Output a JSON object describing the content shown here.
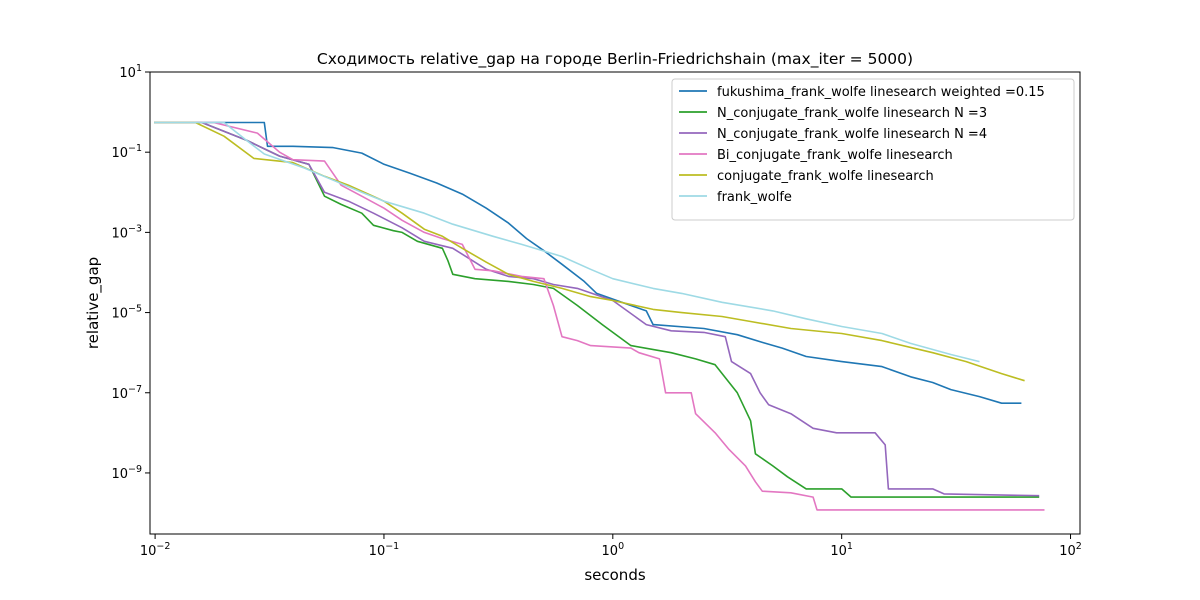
{
  "chart_data": {
    "type": "line",
    "title": "Сходимость relative_gap на городе Berlin-Friedrichshain  (max_iter = 5000)",
    "xlabel": "seconds",
    "ylabel": "relative_gap",
    "xscale": "log",
    "yscale": "log",
    "xlim": [
      0.0095,
      110
    ],
    "ylim": [
      3e-11,
      10
    ],
    "x_ticks": [
      {
        "value": 0.01,
        "base": "10",
        "exp": "−2"
      },
      {
        "value": 0.1,
        "base": "10",
        "exp": "−1"
      },
      {
        "value": 1,
        "base": "10",
        "exp": "0"
      },
      {
        "value": 10,
        "base": "10",
        "exp": "1"
      },
      {
        "value": 100,
        "base": "10",
        "exp": "2"
      }
    ],
    "y_ticks": [
      {
        "value": 1e-09,
        "base": "10",
        "exp": "−9"
      },
      {
        "value": 1e-07,
        "base": "10",
        "exp": "−7"
      },
      {
        "value": 1e-05,
        "base": "10",
        "exp": "−5"
      },
      {
        "value": 0.001,
        "base": "10",
        "exp": "−3"
      },
      {
        "value": 0.1,
        "base": "10",
        "exp": "−1"
      },
      {
        "value": 10,
        "base": "10",
        "exp": "1"
      }
    ],
    "grid": false,
    "legend_position": "top-right",
    "series": [
      {
        "name": "fukushima_frank_wolfe linesearch weighted =0.15",
        "color": "#1f77b4",
        "points": [
          [
            0.0099,
            0.55
          ],
          [
            0.03,
            0.55
          ],
          [
            0.031,
            0.14
          ],
          [
            0.04,
            0.14
          ],
          [
            0.06,
            0.13
          ],
          [
            0.08,
            0.095
          ],
          [
            0.1,
            0.05
          ],
          [
            0.13,
            0.03
          ],
          [
            0.17,
            0.017
          ],
          [
            0.22,
            0.009
          ],
          [
            0.28,
            0.004
          ],
          [
            0.35,
            0.0017
          ],
          [
            0.42,
            0.0007
          ],
          [
            0.5,
            0.00035
          ],
          [
            0.6,
            0.00016
          ],
          [
            0.75,
            6e-05
          ],
          [
            0.85,
            3e-05
          ],
          [
            1.2,
            1.5e-05
          ],
          [
            1.4,
            1.1e-05
          ],
          [
            1.5,
            5e-06
          ],
          [
            2.5,
            4e-06
          ],
          [
            3.5,
            2.8e-06
          ],
          [
            4.5,
            1.8e-06
          ],
          [
            5.5,
            1.3e-06
          ],
          [
            7,
            8e-07
          ],
          [
            10,
            6e-07
          ],
          [
            15,
            4.5e-07
          ],
          [
            20,
            2.5e-07
          ],
          [
            25,
            1.8e-07
          ],
          [
            30,
            1.2e-07
          ],
          [
            40,
            8e-08
          ],
          [
            50,
            5.5e-08
          ],
          [
            61,
            5.5e-08
          ]
        ]
      },
      {
        "name": "N_conjugate_frank_wolfe linesearch N =3",
        "color": "#2ca02c",
        "points": [
          [
            0.0099,
            0.55
          ],
          [
            0.016,
            0.55
          ],
          [
            0.025,
            0.2
          ],
          [
            0.035,
            0.08
          ],
          [
            0.047,
            0.05
          ],
          [
            0.055,
            0.008
          ],
          [
            0.065,
            0.005
          ],
          [
            0.08,
            0.003
          ],
          [
            0.09,
            0.0015
          ],
          [
            0.11,
            0.0011
          ],
          [
            0.12,
            0.001
          ],
          [
            0.14,
            0.0006
          ],
          [
            0.18,
            0.0004
          ],
          [
            0.19,
            0.0002
          ],
          [
            0.2,
            9e-05
          ],
          [
            0.25,
            7e-05
          ],
          [
            0.35,
            6e-05
          ],
          [
            0.45,
            5e-05
          ],
          [
            0.55,
            4e-05
          ],
          [
            0.7,
            1.5e-05
          ],
          [
            0.9,
            5e-06
          ],
          [
            1.2,
            1.5e-06
          ],
          [
            1.8,
            1e-06
          ],
          [
            2.3,
            7e-07
          ],
          [
            2.8,
            5e-07
          ],
          [
            3.5,
            1e-07
          ],
          [
            4,
            2e-08
          ],
          [
            4.2,
            3e-09
          ],
          [
            5,
            1.5e-09
          ],
          [
            5.8,
            8e-10
          ],
          [
            7,
            4e-10
          ],
          [
            10,
            4e-10
          ],
          [
            11,
            2.5e-10
          ],
          [
            73,
            2.5e-10
          ]
        ]
      },
      {
        "name": "N_conjugate_frank_wolfe linesearch N =4",
        "color": "#9467bd",
        "points": [
          [
            0.0099,
            0.55
          ],
          [
            0.016,
            0.55
          ],
          [
            0.025,
            0.2
          ],
          [
            0.035,
            0.08
          ],
          [
            0.047,
            0.05
          ],
          [
            0.055,
            0.01
          ],
          [
            0.07,
            0.006
          ],
          [
            0.09,
            0.003
          ],
          [
            0.12,
            0.0013
          ],
          [
            0.15,
            0.0006
          ],
          [
            0.2,
            0.0004
          ],
          [
            0.28,
            0.00012
          ],
          [
            0.35,
            8e-05
          ],
          [
            0.45,
            7e-05
          ],
          [
            0.55,
            5e-05
          ],
          [
            0.7,
            4e-05
          ],
          [
            1,
            2e-05
          ],
          [
            1.4,
            5e-06
          ],
          [
            1.8,
            3.5e-06
          ],
          [
            2.5,
            3.2e-06
          ],
          [
            3.1,
            2.5e-06
          ],
          [
            3.3,
            6e-07
          ],
          [
            4,
            3e-07
          ],
          [
            4.4,
            1e-07
          ],
          [
            4.8,
            5e-08
          ],
          [
            6,
            3e-08
          ],
          [
            7.5,
            1.3e-08
          ],
          [
            9.5,
            1e-08
          ],
          [
            14,
            1e-08
          ],
          [
            15.5,
            5e-09
          ],
          [
            16,
            4e-10
          ],
          [
            25,
            4e-10
          ],
          [
            28,
            3e-10
          ],
          [
            73,
            2.7e-10
          ]
        ]
      },
      {
        "name": "Bi_conjugate_frank_wolfe linesearch",
        "color": "#e377c2",
        "points": [
          [
            0.0099,
            0.55
          ],
          [
            0.018,
            0.55
          ],
          [
            0.028,
            0.3
          ],
          [
            0.035,
            0.1
          ],
          [
            0.04,
            0.065
          ],
          [
            0.055,
            0.06
          ],
          [
            0.065,
            0.015
          ],
          [
            0.08,
            0.008
          ],
          [
            0.1,
            0.004
          ],
          [
            0.12,
            0.002
          ],
          [
            0.15,
            0.001
          ],
          [
            0.18,
            0.0007
          ],
          [
            0.22,
            0.0005
          ],
          [
            0.25,
            0.00012
          ],
          [
            0.3,
            0.00011
          ],
          [
            0.4,
            8e-05
          ],
          [
            0.5,
            7e-05
          ],
          [
            0.55,
            1.5e-05
          ],
          [
            0.6,
            2.5e-06
          ],
          [
            0.7,
            2e-06
          ],
          [
            0.8,
            1.5e-06
          ],
          [
            1.2,
            1.3e-06
          ],
          [
            1.3,
            1e-06
          ],
          [
            1.6,
            7e-07
          ],
          [
            1.7,
            1e-07
          ],
          [
            2.2,
            1e-07
          ],
          [
            2.3,
            3e-08
          ],
          [
            2.8,
            1e-08
          ],
          [
            3.2,
            4e-09
          ],
          [
            3.8,
            1.5e-09
          ],
          [
            4.2,
            6e-10
          ],
          [
            4.5,
            3.5e-10
          ],
          [
            6,
            3.2e-10
          ],
          [
            7.5,
            2.5e-10
          ],
          [
            7.8,
            1.2e-10
          ],
          [
            77,
            1.2e-10
          ]
        ]
      },
      {
        "name": "conjugate_frank_wolfe linesearch",
        "color": "#bcbd22",
        "points": [
          [
            0.0099,
            0.55
          ],
          [
            0.015,
            0.55
          ],
          [
            0.02,
            0.25
          ],
          [
            0.027,
            0.07
          ],
          [
            0.04,
            0.055
          ],
          [
            0.055,
            0.025
          ],
          [
            0.07,
            0.015
          ],
          [
            0.1,
            0.006
          ],
          [
            0.12,
            0.003
          ],
          [
            0.15,
            0.0012
          ],
          [
            0.18,
            0.0008
          ],
          [
            0.22,
            0.0004
          ],
          [
            0.28,
            0.00018
          ],
          [
            0.35,
            9e-05
          ],
          [
            0.45,
            6e-05
          ],
          [
            0.6,
            4e-05
          ],
          [
            0.8,
            2.5e-05
          ],
          [
            1,
            2e-05
          ],
          [
            1.5,
            1.2e-05
          ],
          [
            2,
            1e-05
          ],
          [
            3,
            8e-06
          ],
          [
            4,
            6e-06
          ],
          [
            6,
            4e-06
          ],
          [
            10,
            3e-06
          ],
          [
            15,
            2e-06
          ],
          [
            25,
            1e-06
          ],
          [
            35,
            6e-07
          ],
          [
            50,
            3e-07
          ],
          [
            63,
            2e-07
          ]
        ]
      },
      {
        "name": "frank_wolfe",
        "color": "#9edae5",
        "points": [
          [
            0.0099,
            0.55
          ],
          [
            0.02,
            0.55
          ],
          [
            0.025,
            0.2
          ],
          [
            0.03,
            0.09
          ],
          [
            0.045,
            0.04
          ],
          [
            0.06,
            0.02
          ],
          [
            0.08,
            0.01
          ],
          [
            0.1,
            0.006
          ],
          [
            0.15,
            0.003
          ],
          [
            0.2,
            0.0016
          ],
          [
            0.3,
            0.0008
          ],
          [
            0.4,
            0.0005
          ],
          [
            0.6,
            0.00025
          ],
          [
            0.8,
            0.00012
          ],
          [
            1,
            7e-05
          ],
          [
            1.5,
            4e-05
          ],
          [
            2,
            3e-05
          ],
          [
            3,
            1.8e-05
          ],
          [
            5,
            1.1e-05
          ],
          [
            7,
            7e-06
          ],
          [
            10,
            4.5e-06
          ],
          [
            15,
            3e-06
          ],
          [
            20,
            1.7e-06
          ],
          [
            30,
            9e-07
          ],
          [
            40,
            6e-07
          ]
        ]
      }
    ]
  }
}
